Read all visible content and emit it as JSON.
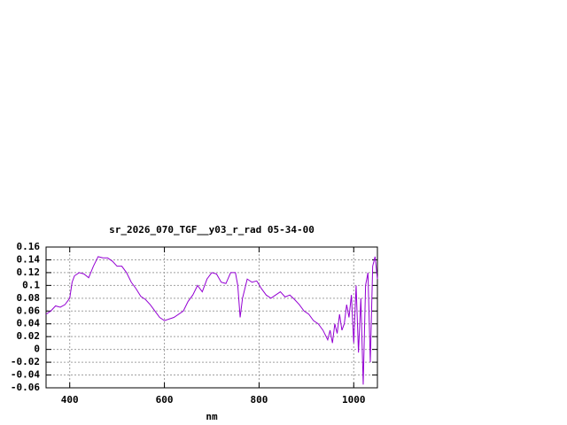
{
  "chart_data": {
    "type": "line",
    "title": "sr_2026_070_TGF__y03_r_rad 05-34-00",
    "x_label": "nm",
    "color": "#9400d3",
    "grid": true,
    "xlim": [
      350,
      1050
    ],
    "xticks": [
      400,
      600,
      800,
      1000
    ],
    "ylim": [
      -0.06,
      0.16
    ],
    "yticks": [
      -0.06,
      -0.04,
      -0.02,
      0,
      0.02,
      0.04,
      0.06,
      0.08,
      0.1,
      0.12,
      0.14,
      0.16
    ],
    "x": [
      350,
      360,
      370,
      380,
      390,
      400,
      405,
      410,
      420,
      430,
      440,
      450,
      460,
      470,
      480,
      490,
      500,
      510,
      520,
      530,
      540,
      550,
      560,
      570,
      580,
      590,
      600,
      620,
      640,
      650,
      660,
      670,
      680,
      690,
      700,
      710,
      720,
      730,
      740,
      750,
      755,
      760,
      765,
      775,
      785,
      795,
      805,
      815,
      825,
      835,
      845,
      855,
      865,
      875,
      885,
      895,
      905,
      915,
      925,
      935,
      945,
      950,
      955,
      960,
      965,
      970,
      975,
      980,
      985,
      990,
      995,
      1000,
      1005,
      1010,
      1015,
      1020,
      1025,
      1030,
      1035,
      1040,
      1045,
      1050
    ],
    "values": [
      0.055,
      0.06,
      0.068,
      0.066,
      0.07,
      0.08,
      0.105,
      0.115,
      0.12,
      0.118,
      0.112,
      0.13,
      0.145,
      0.143,
      0.143,
      0.138,
      0.13,
      0.13,
      0.12,
      0.105,
      0.095,
      0.083,
      0.078,
      0.07,
      0.06,
      0.05,
      0.045,
      0.05,
      0.06,
      0.075,
      0.085,
      0.1,
      0.09,
      0.11,
      0.12,
      0.118,
      0.105,
      0.103,
      0.12,
      0.12,
      0.1,
      0.05,
      0.08,
      0.11,
      0.105,
      0.107,
      0.095,
      0.085,
      0.08,
      0.085,
      0.09,
      0.082,
      0.085,
      0.078,
      0.07,
      0.06,
      0.055,
      0.045,
      0.04,
      0.03,
      0.015,
      0.03,
      0.01,
      0.04,
      0.025,
      0.055,
      0.03,
      0.04,
      0.07,
      0.05,
      0.085,
      0.01,
      0.1,
      -0.005,
      0.08,
      -0.055,
      0.1,
      0.12,
      -0.02,
      0.13,
      0.145,
      0.11
    ]
  }
}
